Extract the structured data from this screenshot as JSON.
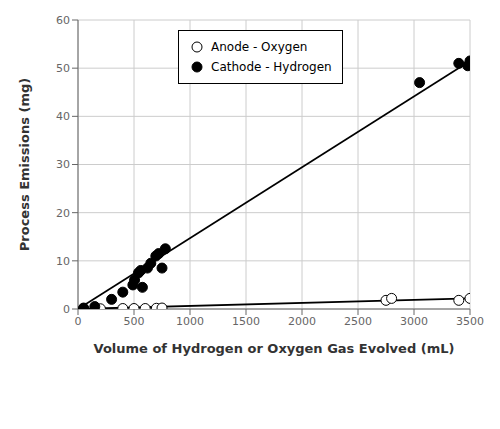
{
  "chart_data": {
    "type": "scatter",
    "xlabel": "Volume of Hydrogen or Oxygen Gas Evolved (mL)",
    "ylabel": "Process Emissions (mg)",
    "xlim": [
      0,
      3500
    ],
    "ylim": [
      0,
      60
    ],
    "xticks": [
      0,
      500,
      1000,
      1500,
      2000,
      2500,
      3000,
      3500
    ],
    "yticks": [
      0,
      10,
      20,
      30,
      40,
      50,
      60
    ],
    "grid": true,
    "legend": "upper center",
    "series": [
      {
        "name": "Anode - Oxygen",
        "type": "scatter",
        "marker": "open circle",
        "color": "black",
        "x": [
          50,
          200,
          400,
          500,
          600,
          700,
          750,
          2750,
          2800,
          3400,
          3500
        ],
        "values": [
          0.05,
          0.05,
          0.1,
          0.1,
          0.1,
          0.15,
          0.2,
          1.8,
          2.2,
          1.8,
          2.2
        ]
      },
      {
        "name": "Cathode - Hydrogen",
        "type": "scatter",
        "marker": "circle",
        "color": "black",
        "x": [
          50,
          150,
          300,
          400,
          490,
          505,
          540,
          560,
          575,
          620,
          650,
          695,
          720,
          750,
          780,
          3050,
          3400,
          3480,
          3500
        ],
        "values": [
          0.2,
          0.5,
          2.0,
          3.5,
          5.0,
          6.0,
          7.5,
          8.0,
          4.5,
          8.5,
          9.5,
          11.0,
          11.5,
          8.5,
          12.5,
          47.0,
          51.0,
          50.5,
          51.5
        ]
      },
      {
        "type": "line",
        "color": "black",
        "x": [
          0,
          3500
        ],
        "values": [
          0,
          51.5
        ]
      },
      {
        "type": "line",
        "color": "black",
        "x": [
          0,
          3500
        ],
        "values": [
          0,
          2.2
        ]
      }
    ]
  }
}
